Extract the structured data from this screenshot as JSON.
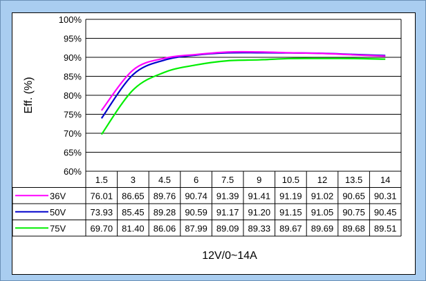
{
  "chart_data": {
    "type": "line",
    "title": "",
    "ylabel": "Eff. (%)",
    "xlabel": "12V/0~14A",
    "ylim": [
      60,
      100
    ],
    "yticks": [
      60,
      65,
      70,
      75,
      80,
      85,
      90,
      95,
      100
    ],
    "ytick_labels": [
      "60%",
      "65%",
      "70%",
      "75%",
      "80%",
      "85%",
      "90%",
      "95%",
      "100%"
    ],
    "categories": [
      "1.5",
      "3",
      "4.5",
      "6",
      "7.5",
      "9",
      "10.5",
      "12",
      "13.5",
      "14"
    ],
    "grid": true,
    "legend": "table-below",
    "series": [
      {
        "name": "36V",
        "color": "#ff00ff",
        "values": [
          76.01,
          86.65,
          89.76,
          90.74,
          91.39,
          91.41,
          91.19,
          91.02,
          90.65,
          90.31
        ]
      },
      {
        "name": "50V",
        "color": "#0000cc",
        "values": [
          73.93,
          85.45,
          89.28,
          90.59,
          91.17,
          91.2,
          91.15,
          91.05,
          90.75,
          90.45
        ]
      },
      {
        "name": "75V",
        "color": "#00ee00",
        "values": [
          69.7,
          81.4,
          86.06,
          87.99,
          89.09,
          89.33,
          89.67,
          89.69,
          89.68,
          89.51
        ]
      }
    ],
    "table_values": [
      [
        "76.01",
        "86.65",
        "89.76",
        "90.74",
        "91.39",
        "91.41",
        "91.19",
        "91.02",
        "90.65",
        "90.31"
      ],
      [
        "73.93",
        "85.45",
        "89.28",
        "90.59",
        "91.17",
        "91.20",
        "91.15",
        "91.05",
        "90.75",
        "90.45"
      ],
      [
        "69.70",
        "81.40",
        "86.06",
        "87.99",
        "89.09",
        "89.33",
        "89.67",
        "89.69",
        "89.68",
        "89.51"
      ]
    ]
  }
}
